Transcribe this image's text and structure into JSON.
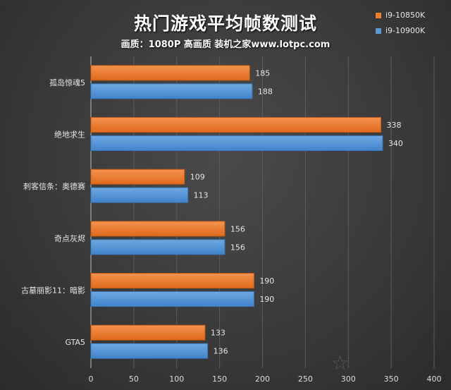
{
  "chart_data": {
    "type": "bar",
    "orientation": "horizontal",
    "title": "热门游戏平均帧数测试",
    "subtitle": "画质：1080P 高画质 装机之家www.lotpc.com",
    "categories": [
      "孤岛惊魂5",
      "绝地求生",
      "刺客信条：奥德赛",
      "奇点灰烬",
      "古墓丽影11：暗影",
      "GTA5"
    ],
    "series": [
      {
        "name": "i9-10850K",
        "color": "#ed7d31",
        "values": [
          185,
          338,
          109,
          156,
          190,
          133
        ]
      },
      {
        "name": "i9-10900K",
        "color": "#5b9bd5",
        "values": [
          188,
          340,
          113,
          156,
          190,
          136
        ]
      }
    ],
    "xlim": [
      0,
      400
    ],
    "xticks": [
      0,
      50,
      100,
      150,
      200,
      250,
      300,
      350,
      400
    ],
    "grid": true,
    "legend": "top-right",
    "xlabel": "",
    "ylabel": ""
  },
  "watermark": "装机之家 www.lotpc.com"
}
